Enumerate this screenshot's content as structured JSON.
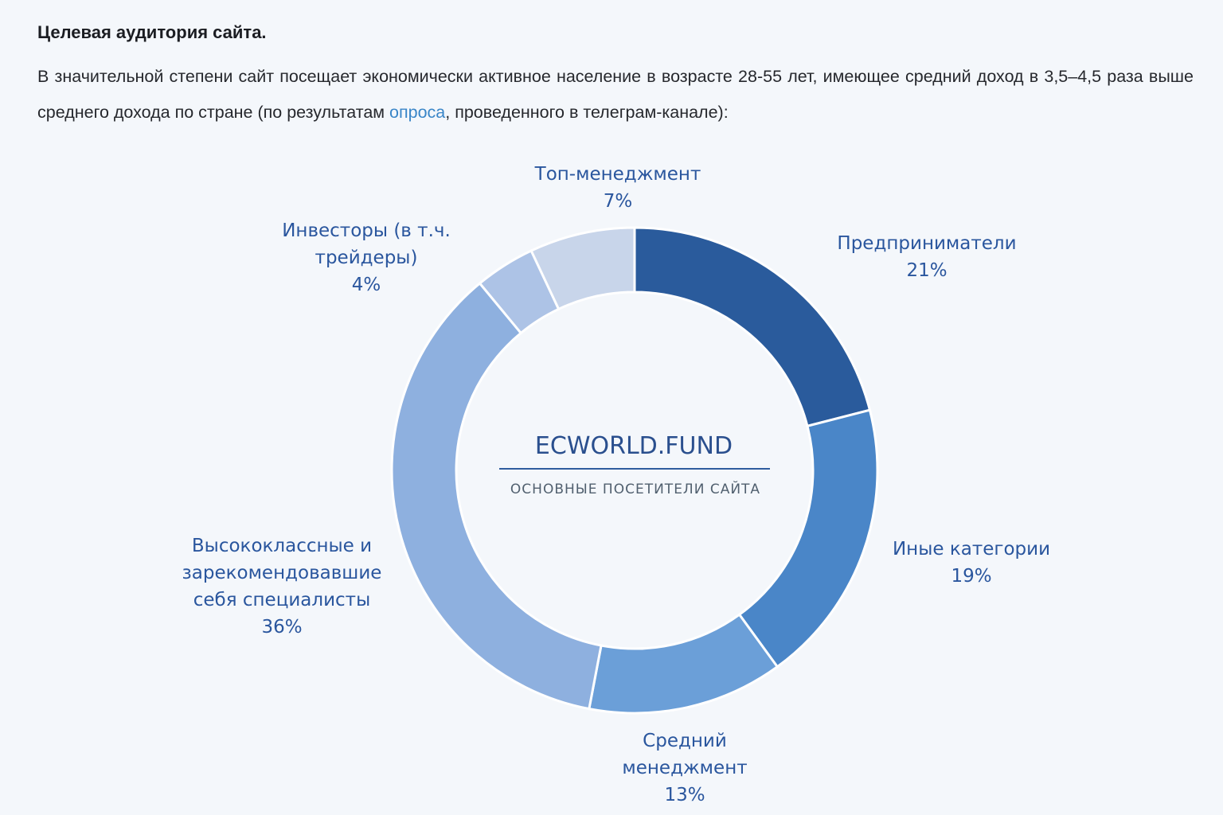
{
  "header": {
    "title": "Целевая аудитория сайта.",
    "intro_part1": "В значительной степени сайт посещает экономически активное население в возрасте 28-55 лет, имеющее средний доход в 3,5–4,5 раза выше среднего дохода по стране (по результатам ",
    "intro_link": "опроса",
    "intro_part2": ", проведенного в телеграм-канале):"
  },
  "chart_data": {
    "type": "pie",
    "donut": true,
    "center_title": "ECWORLD.FUND",
    "center_subtitle": "ОСНОВНЫЕ ПОСЕТИТЕЛИ САЙТА",
    "segments": [
      {
        "label_lines": [
          "Предприниматели"
        ],
        "value": 21,
        "value_label": "21%",
        "color": "#2a5b9c"
      },
      {
        "label_lines": [
          "Иные категории"
        ],
        "value": 19,
        "value_label": "19%",
        "color": "#4a86c8"
      },
      {
        "label_lines": [
          "Средний",
          "менеджмент"
        ],
        "value": 13,
        "value_label": "13%",
        "color": "#6b9fd8"
      },
      {
        "label_lines": [
          "Высококлассные и",
          "зарекомендовавшие",
          "себя специалисты"
        ],
        "value": 36,
        "value_label": "36%",
        "color": "#8eb0df"
      },
      {
        "label_lines": [
          "Инвесторы (в т.ч.",
          "трейдеры)"
        ],
        "value": 4,
        "value_label": "4%",
        "color": "#adc3e6"
      },
      {
        "label_lines": [
          "Топ-менеджмент"
        ],
        "value": 7,
        "value_label": "7%",
        "color": "#c8d5ea"
      }
    ]
  }
}
